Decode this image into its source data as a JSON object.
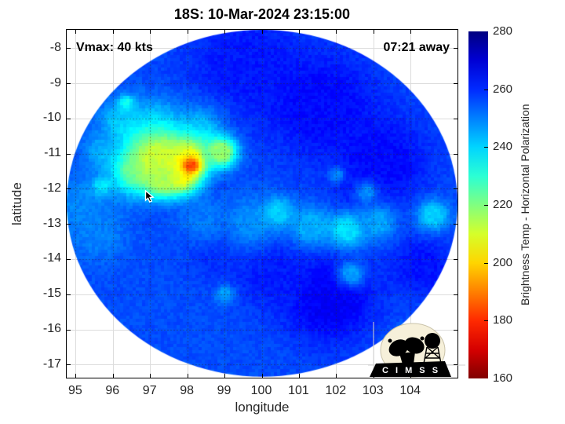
{
  "title": "18S: 10-Mar-2024 23:15:00",
  "annotations": {
    "vmax": "Vmax: 40 kts",
    "countdown": "07:21 away"
  },
  "axes": {
    "xlabel": "longitude",
    "ylabel": "latitude",
    "x_ticks": [
      95,
      96,
      97,
      98,
      99,
      100,
      101,
      102,
      103,
      104
    ],
    "y_ticks": [
      -8,
      -9,
      -10,
      -11,
      -12,
      -13,
      -14,
      -15,
      -16,
      -17
    ]
  },
  "colorbar": {
    "label": "Brightness Temp - Horizontal Polarization",
    "ticks": [
      280,
      260,
      240,
      220,
      200,
      180,
      160
    ],
    "min": 160,
    "max": 280,
    "colormap": "jet_reversed",
    "top_color": "#000080",
    "bottom_color": "#800000"
  },
  "logo": {
    "text": "C I M S S"
  },
  "chart_data": {
    "type": "heatmap",
    "title": "18S: 10-Mar-2024 23:15:00",
    "xlabel": "longitude",
    "ylabel": "latitude",
    "x_range": [
      94.75,
      105.25
    ],
    "y_range": [
      -17.36,
      -7.47
    ],
    "value_label": "Brightness Temp - Horizontal Polarization",
    "value_range": [
      160,
      280
    ],
    "grid": true,
    "swath": {
      "center_lon": 100.0,
      "center_lat": -12.4,
      "radius_lon_deg": 5.25,
      "radius_lat_deg": 4.93,
      "background_temp_k": 256
    },
    "features": [
      {
        "lon": 99.5,
        "lat": -8.4,
        "sigma_deg": 1.1,
        "temp_k": 262
      },
      {
        "lon": 101.6,
        "lat": -9.6,
        "sigma_deg": 1.1,
        "temp_k": 264
      },
      {
        "lon": 103.2,
        "lat": -11.2,
        "sigma_deg": 0.9,
        "temp_k": 264
      },
      {
        "lon": 102.6,
        "lat": -12.4,
        "sigma_deg": 0.5,
        "temp_k": 262
      },
      {
        "lon": 101.8,
        "lat": -15.1,
        "sigma_deg": 0.9,
        "temp_k": 266
      },
      {
        "lon": 100.2,
        "lat": -14.3,
        "sigma_deg": 0.7,
        "temp_k": 262
      },
      {
        "lon": 104.3,
        "lat": -14.2,
        "sigma_deg": 0.6,
        "temp_k": 263
      },
      {
        "lon": 98.9,
        "lat": -13.8,
        "sigma_deg": 0.6,
        "temp_k": 260
      },
      {
        "lon": 95.2,
        "lat": -12.4,
        "sigma_deg": 0.6,
        "temp_k": 249
      },
      {
        "lon": 95.6,
        "lat": -13.3,
        "sigma_deg": 0.5,
        "temp_k": 250
      },
      {
        "lon": 95.7,
        "lat": -11.9,
        "sigma_deg": 0.17,
        "temp_k": 239
      },
      {
        "lon": 99.7,
        "lat": -12.95,
        "sigma_deg": 0.5,
        "temp_k": 249
      },
      {
        "lon": 100.45,
        "lat": -12.65,
        "sigma_deg": 0.28,
        "temp_k": 240
      },
      {
        "lon": 101.3,
        "lat": -13.05,
        "sigma_deg": 0.4,
        "temp_k": 245
      },
      {
        "lon": 102.3,
        "lat": -13.15,
        "sigma_deg": 0.35,
        "temp_k": 238
      },
      {
        "lon": 103.1,
        "lat": -12.95,
        "sigma_deg": 0.35,
        "temp_k": 246
      },
      {
        "lon": 104.6,
        "lat": -12.75,
        "sigma_deg": 0.3,
        "temp_k": 241
      },
      {
        "lon": 98.4,
        "lat": -12.85,
        "sigma_deg": 0.45,
        "temp_k": 251
      },
      {
        "lon": 102.4,
        "lat": -14.4,
        "sigma_deg": 0.25,
        "temp_k": 247
      },
      {
        "lon": 99.0,
        "lat": -15.0,
        "sigma_deg": 0.18,
        "temp_k": 246
      },
      {
        "lon": 103.9,
        "lat": -16.5,
        "sigma_deg": 0.3,
        "temp_k": 241
      },
      {
        "lon": 102.8,
        "lat": -12.1,
        "sigma_deg": 0.2,
        "temp_k": 249
      },
      {
        "lon": 102.0,
        "lat": -11.6,
        "sigma_deg": 0.15,
        "temp_k": 250
      },
      {
        "lon": 96.3,
        "lat": -10.1,
        "sigma_deg": 0.45,
        "temp_k": 241
      },
      {
        "lon": 96.35,
        "lat": -9.55,
        "sigma_deg": 0.14,
        "temp_k": 233
      },
      {
        "lon": 97.2,
        "lat": -10.2,
        "sigma_deg": 0.5,
        "temp_k": 243
      },
      {
        "lon": 98.3,
        "lat": -10.3,
        "sigma_deg": 0.45,
        "temp_k": 244
      },
      {
        "lon": 97.0,
        "lat": -10.75,
        "sigma_deg": 0.45,
        "temp_k": 236
      },
      {
        "lon": 95.7,
        "lat": -10.9,
        "sigma_deg": 0.35,
        "temp_k": 246
      },
      {
        "lon": 96.6,
        "lat": -11.5,
        "sigma_deg": 0.45,
        "temp_k": 228
      },
      {
        "lon": 97.2,
        "lat": -11.15,
        "sigma_deg": 0.5,
        "temp_k": 212
      },
      {
        "lon": 98.0,
        "lat": -11.1,
        "sigma_deg": 0.4,
        "temp_k": 210
      },
      {
        "lon": 98.9,
        "lat": -10.95,
        "sigma_deg": 0.3,
        "temp_k": 218
      },
      {
        "lon": 97.8,
        "lat": -11.6,
        "sigma_deg": 0.35,
        "temp_k": 205
      },
      {
        "lon": 97.3,
        "lat": -11.75,
        "sigma_deg": 0.3,
        "temp_k": 215
      },
      {
        "lon": 98.1,
        "lat": -11.32,
        "sigma_deg": 0.16,
        "temp_k": 184
      }
    ]
  }
}
